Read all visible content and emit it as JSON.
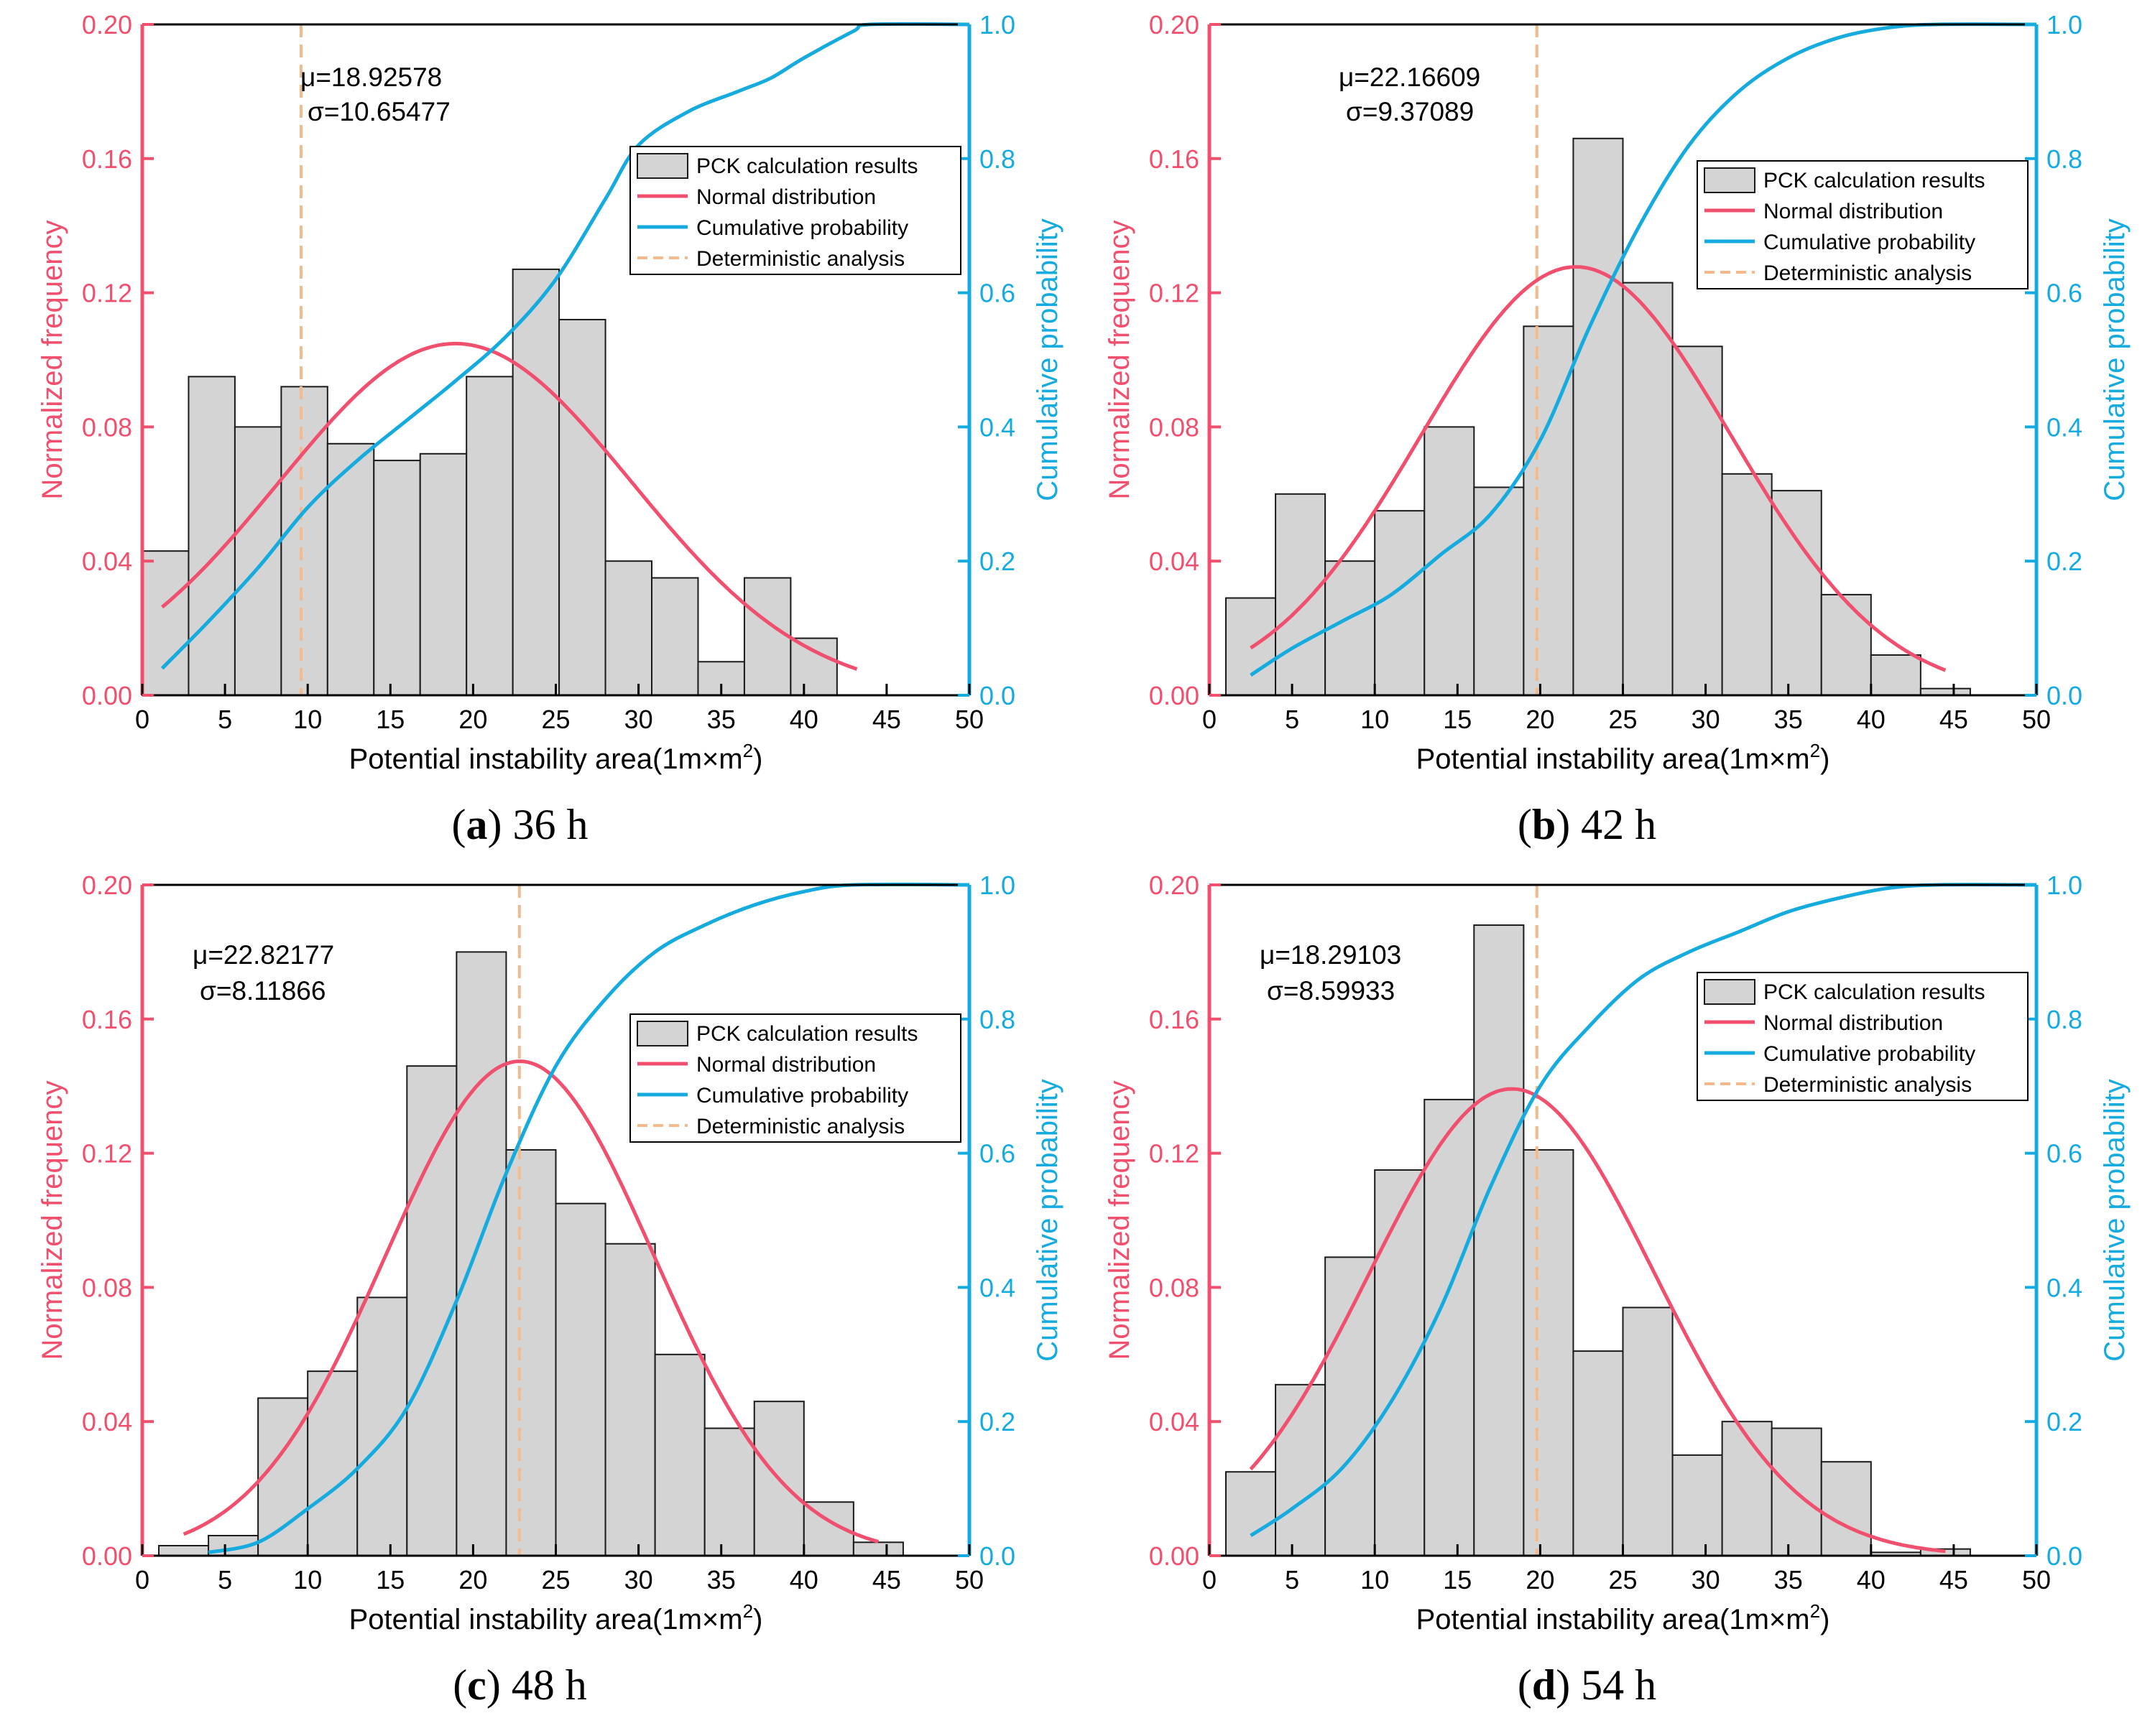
{
  "colors": {
    "normal": "#f0506e",
    "cumulative": "#16abdf",
    "deterministic": "#f5b98b",
    "bar": "#d4d4d4"
  },
  "legend_labels": [
    "PCK calculation results",
    "Normal distribution",
    "Cumulative probability",
    "Deterministic analysis"
  ],
  "chart_data": [
    {
      "type": "bar",
      "caption_letter": "a",
      "caption_time": "36 h",
      "xlabel": "Potential instability area(1m×m",
      "xlabel_sup": "2",
      "xlabel_end": ")",
      "ylabel_left": "Normalized frequency",
      "ylabel_right": "Cumulative probability",
      "xlim": [
        0,
        50
      ],
      "ylim_left": [
        0,
        0.2
      ],
      "ylim_right": [
        0,
        1
      ],
      "x_ticks": [
        "0",
        "5",
        "10",
        "15",
        "20",
        "25",
        "30",
        "35",
        "40",
        "45",
        "50"
      ],
      "y_left_ticks": [
        "0.00",
        "0.04",
        "0.08",
        "0.12",
        "0.16",
        "0.20"
      ],
      "y_right_ticks": [
        "0.0",
        "0.2",
        "0.4",
        "0.6",
        "0.8",
        "1.0"
      ],
      "mu_text": "μ=18.92578",
      "sigma_text": "σ=10.65477",
      "mu": 18.92578,
      "sigma": 10.65477,
      "deterministic_x": 9.6,
      "normal_range": [
        1.2,
        43.2
      ],
      "bins_start": 0,
      "bin_width": 2.8,
      "values": [
        0.043,
        0.095,
        0.08,
        0.092,
        0.075,
        0.07,
        0.072,
        0.095,
        0.127,
        0.112,
        0.04,
        0.035,
        0.01,
        0.035,
        0.017
      ],
      "cumulative_points": [
        [
          1.2,
          0.04
        ],
        [
          4,
          0.11
        ],
        [
          7,
          0.19
        ],
        [
          10,
          0.28
        ],
        [
          13,
          0.35
        ],
        [
          16,
          0.41
        ],
        [
          19,
          0.47
        ],
        [
          22,
          0.535
        ],
        [
          25,
          0.62
        ],
        [
          28,
          0.74
        ],
        [
          30,
          0.82
        ],
        [
          33,
          0.87
        ],
        [
          36,
          0.9
        ],
        [
          38,
          0.92
        ],
        [
          40,
          0.95
        ],
        [
          43,
          0.99
        ],
        [
          44,
          1.0
        ],
        [
          50,
          1.0
        ]
      ],
      "legend_pos": "top-right"
    },
    {
      "type": "bar",
      "caption_letter": "b",
      "caption_time": "42 h",
      "xlabel": "Potential instability area(1m×m",
      "xlabel_sup": "2",
      "xlabel_end": ")",
      "ylabel_left": "Normalized frequency",
      "ylabel_right": "Cumulative probability",
      "xlim": [
        0,
        50
      ],
      "ylim_left": [
        0,
        0.2
      ],
      "ylim_right": [
        0,
        1
      ],
      "x_ticks": [
        "0",
        "5",
        "10",
        "15",
        "20",
        "25",
        "30",
        "35",
        "40",
        "45",
        "50"
      ],
      "y_left_ticks": [
        "0.00",
        "0.04",
        "0.08",
        "0.12",
        "0.16",
        "0.20"
      ],
      "y_right_ticks": [
        "0.0",
        "0.2",
        "0.4",
        "0.6",
        "0.8",
        "1.0"
      ],
      "mu_text": "μ=22.16609",
      "sigma_text": "σ=9.37089",
      "mu": 22.16609,
      "sigma": 9.37089,
      "deterministic_x": 19.8,
      "normal_range": [
        2.5,
        44.5
      ],
      "bins_start": 1.0,
      "bin_width": 3.0,
      "values": [
        0.029,
        0.06,
        0.04,
        0.055,
        0.08,
        0.062,
        0.11,
        0.166,
        0.123,
        0.104,
        0.066,
        0.061,
        0.03,
        0.012,
        0.002
      ],
      "cumulative_points": [
        [
          2.5,
          0.03
        ],
        [
          5,
          0.07
        ],
        [
          8,
          0.11
        ],
        [
          11,
          0.15
        ],
        [
          14,
          0.21
        ],
        [
          17,
          0.27
        ],
        [
          20,
          0.38
        ],
        [
          23,
          0.55
        ],
        [
          26,
          0.7
        ],
        [
          29,
          0.82
        ],
        [
          32,
          0.9
        ],
        [
          35,
          0.95
        ],
        [
          38,
          0.98
        ],
        [
          41,
          0.995
        ],
        [
          44,
          1.0
        ],
        [
          50,
          1.0
        ]
      ],
      "legend_pos": "top-right"
    },
    {
      "type": "bar",
      "caption_letter": "c",
      "caption_time": "48 h",
      "xlabel": "Potential instability area(1m×m",
      "xlabel_sup": "2",
      "xlabel_end": ")",
      "ylabel_left": "Normalized frequency",
      "ylabel_right": "Cumulative probability",
      "xlim": [
        0,
        50
      ],
      "ylim_left": [
        0,
        0.2
      ],
      "ylim_right": [
        0,
        1
      ],
      "x_ticks": [
        "0",
        "5",
        "10",
        "15",
        "20",
        "25",
        "30",
        "35",
        "40",
        "45",
        "50"
      ],
      "y_left_ticks": [
        "0.00",
        "0.04",
        "0.08",
        "0.12",
        "0.16",
        "0.20"
      ],
      "y_right_ticks": [
        "0.0",
        "0.2",
        "0.4",
        "0.6",
        "0.8",
        "1.0"
      ],
      "mu_text": "μ=22.82177",
      "sigma_text": "σ=8.11866",
      "mu": 22.82177,
      "sigma": 8.11866,
      "deterministic_x": 22.8,
      "normal_range": [
        2.5,
        44.5
      ],
      "bins_start": 1.0,
      "bin_width": 3.0,
      "values": [
        0.003,
        0.006,
        0.047,
        0.055,
        0.077,
        0.146,
        0.18,
        0.121,
        0.105,
        0.093,
        0.06,
        0.038,
        0.046,
        0.016,
        0.004
      ],
      "cumulative_points": [
        [
          4,
          0.005
        ],
        [
          7,
          0.02
        ],
        [
          10,
          0.07
        ],
        [
          13,
          0.13
        ],
        [
          16,
          0.22
        ],
        [
          19,
          0.38
        ],
        [
          22,
          0.57
        ],
        [
          25,
          0.73
        ],
        [
          28,
          0.83
        ],
        [
          31,
          0.9
        ],
        [
          34,
          0.94
        ],
        [
          37,
          0.97
        ],
        [
          40,
          0.99
        ],
        [
          43,
          1.0
        ],
        [
          50,
          1.0
        ]
      ],
      "legend_pos": "top-right"
    },
    {
      "type": "bar",
      "caption_letter": "d",
      "caption_time": "54 h",
      "xlabel": "Potential instability area(1m×m",
      "xlabel_sup": "2",
      "xlabel_end": ")",
      "ylabel_left": "Normalized frequency",
      "ylabel_right": "Cumulative probability",
      "xlim": [
        0,
        50
      ],
      "ylim_left": [
        0,
        0.2
      ],
      "ylim_right": [
        0,
        1
      ],
      "x_ticks": [
        "0",
        "5",
        "10",
        "15",
        "20",
        "25",
        "30",
        "35",
        "40",
        "45",
        "50"
      ],
      "y_left_ticks": [
        "0.00",
        "0.04",
        "0.08",
        "0.12",
        "0.16",
        "0.20"
      ],
      "y_right_ticks": [
        "0.0",
        "0.2",
        "0.4",
        "0.6",
        "0.8",
        "1.0"
      ],
      "mu_text": "μ=18.29103",
      "sigma_text": "σ=8.59933",
      "mu": 18.29103,
      "sigma": 8.59933,
      "deterministic_x": 19.8,
      "normal_range": [
        2.5,
        44.5
      ],
      "bins_start": 1.0,
      "bin_width": 3.0,
      "values": [
        0.025,
        0.051,
        0.089,
        0.115,
        0.136,
        0.188,
        0.121,
        0.061,
        0.074,
        0.03,
        0.04,
        0.038,
        0.028,
        0.001,
        0.002
      ],
      "cumulative_points": [
        [
          2.5,
          0.03
        ],
        [
          5,
          0.07
        ],
        [
          8,
          0.13
        ],
        [
          11,
          0.23
        ],
        [
          14,
          0.37
        ],
        [
          17,
          0.55
        ],
        [
          20,
          0.7
        ],
        [
          23,
          0.79
        ],
        [
          26,
          0.86
        ],
        [
          29,
          0.9
        ],
        [
          32,
          0.93
        ],
        [
          35,
          0.96
        ],
        [
          38,
          0.98
        ],
        [
          41,
          0.995
        ],
        [
          44,
          1.0
        ],
        [
          50,
          1.0
        ]
      ],
      "legend_pos": "top-right"
    }
  ]
}
